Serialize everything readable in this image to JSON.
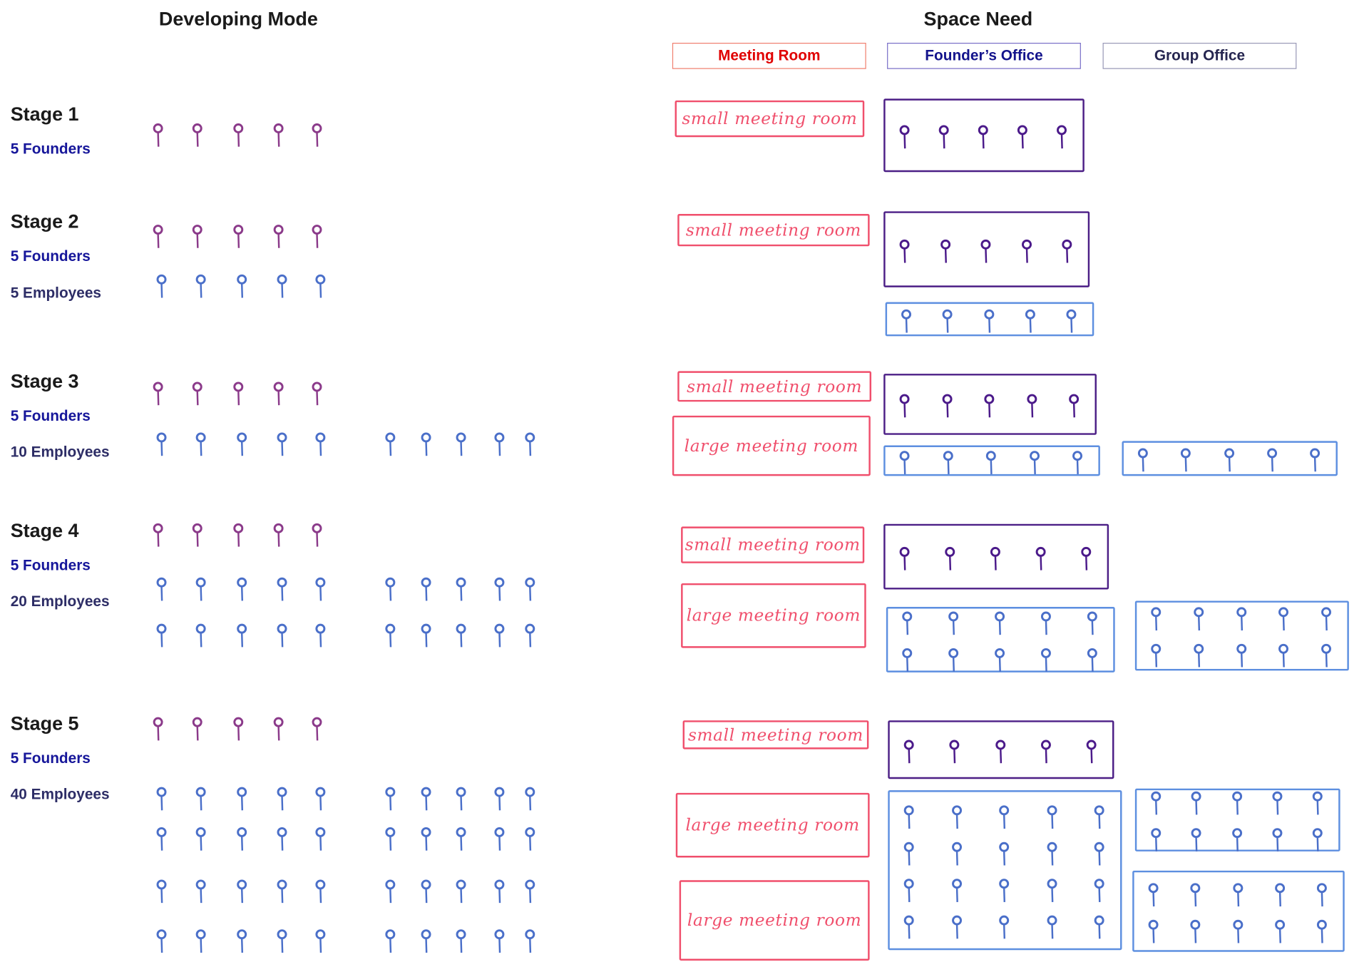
{
  "headers": {
    "left": "Developing Mode",
    "right": "Space Need"
  },
  "legend": [
    {
      "label": "Meeting Room",
      "color": "#e00000",
      "border": "#f08070"
    },
    {
      "label": "Founder’s Office",
      "color": "#14148c",
      "border": "#7a70c8"
    },
    {
      "label": "Group Office",
      "color": "#262650",
      "border": "#9a9ab8"
    }
  ],
  "colors": {
    "founder_pin": "#8b3a8a",
    "employee_pin": "#4a6fc9",
    "founder_office_pin": "#4b1a8a",
    "meeting": "#f04f6c"
  },
  "stages": [
    {
      "title": "Stage 1",
      "founders_label": "5 Founders",
      "employees_label": "",
      "founders": 5,
      "employees": 0,
      "space": [
        {
          "type": "meeting",
          "label": "small meeting room"
        },
        {
          "type": "founder",
          "people": 5
        }
      ]
    },
    {
      "title": "Stage 2",
      "founders_label": "5 Founders",
      "employees_label": "5 Employees",
      "founders": 5,
      "employees": 5,
      "space": [
        {
          "type": "meeting",
          "label": "small meeting room"
        },
        {
          "type": "founder",
          "people": 5
        },
        {
          "type": "employee",
          "people": 5
        }
      ]
    },
    {
      "title": "Stage 3",
      "founders_label": "5 Founders",
      "employees_label": "10 Employees",
      "founders": 5,
      "employees": 10,
      "space": [
        {
          "type": "meeting",
          "label": "small meeting room"
        },
        {
          "type": "meeting",
          "label": "large meeting room"
        },
        {
          "type": "founder",
          "people": 5
        },
        {
          "type": "employee",
          "people": 5
        },
        {
          "type": "employee",
          "people": 5
        }
      ]
    },
    {
      "title": "Stage 4",
      "founders_label": "5 Founders",
      "employees_label": "20 Employees",
      "founders": 5,
      "employees": 20,
      "space": [
        {
          "type": "meeting",
          "label": "small meeting room"
        },
        {
          "type": "meeting",
          "label": "large meeting room"
        },
        {
          "type": "founder",
          "people": 5
        },
        {
          "type": "employee",
          "people": 10
        },
        {
          "type": "employee",
          "people": 10
        }
      ]
    },
    {
      "title": "Stage 5",
      "founders_label": "5 Founders",
      "employees_label": "40 Employees",
      "founders": 5,
      "employees": 40,
      "space": [
        {
          "type": "meeting",
          "label": "small meeting room"
        },
        {
          "type": "meeting",
          "label": "large meeting room"
        },
        {
          "type": "meeting",
          "label": "large meeting room"
        },
        {
          "type": "founder",
          "people": 5
        },
        {
          "type": "employee",
          "people": 20
        },
        {
          "type": "employee",
          "people": 10
        },
        {
          "type": "employee",
          "people": 10
        }
      ]
    }
  ]
}
